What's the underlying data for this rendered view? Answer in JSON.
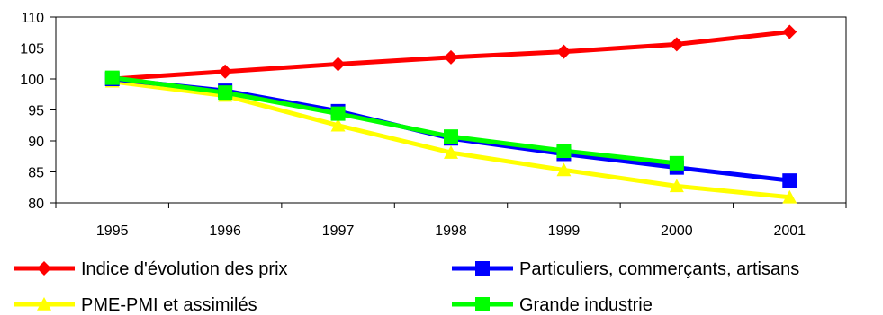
{
  "chart_data": {
    "type": "line",
    "title": "",
    "xlabel": "",
    "ylabel": "",
    "categories": [
      "1995",
      "1996",
      "1997",
      "1998",
      "1999",
      "2000",
      "2001"
    ],
    "ylim": [
      80,
      110
    ],
    "yticks": [
      "80",
      "85",
      "90",
      "95",
      "100",
      "105",
      "110"
    ],
    "grid": false,
    "legend_position": "bottom",
    "series": [
      {
        "name": "Indice d'évolution des prix",
        "color": "#ff0000",
        "marker": "diamond",
        "values": [
          100,
          101.2,
          102.4,
          103.5,
          104.4,
          105.6,
          107.6
        ]
      },
      {
        "name": "Particuliers, commerçants, artisans",
        "color": "#0000ff",
        "marker": "square",
        "values": [
          100,
          98.1,
          94.8,
          90.4,
          87.9,
          85.7,
          83.6
        ]
      },
      {
        "name": "PME-PMI et assimilés",
        "color": "#ffff00",
        "marker": "triangle",
        "values": [
          99.6,
          97.3,
          92.5,
          88.1,
          85.3,
          82.7,
          80.9
        ]
      },
      {
        "name": "Grande industrie",
        "color": "#00ff00",
        "marker": "square",
        "values": [
          100.2,
          97.8,
          94.4,
          90.7,
          88.4,
          86.4,
          null
        ]
      }
    ]
  }
}
